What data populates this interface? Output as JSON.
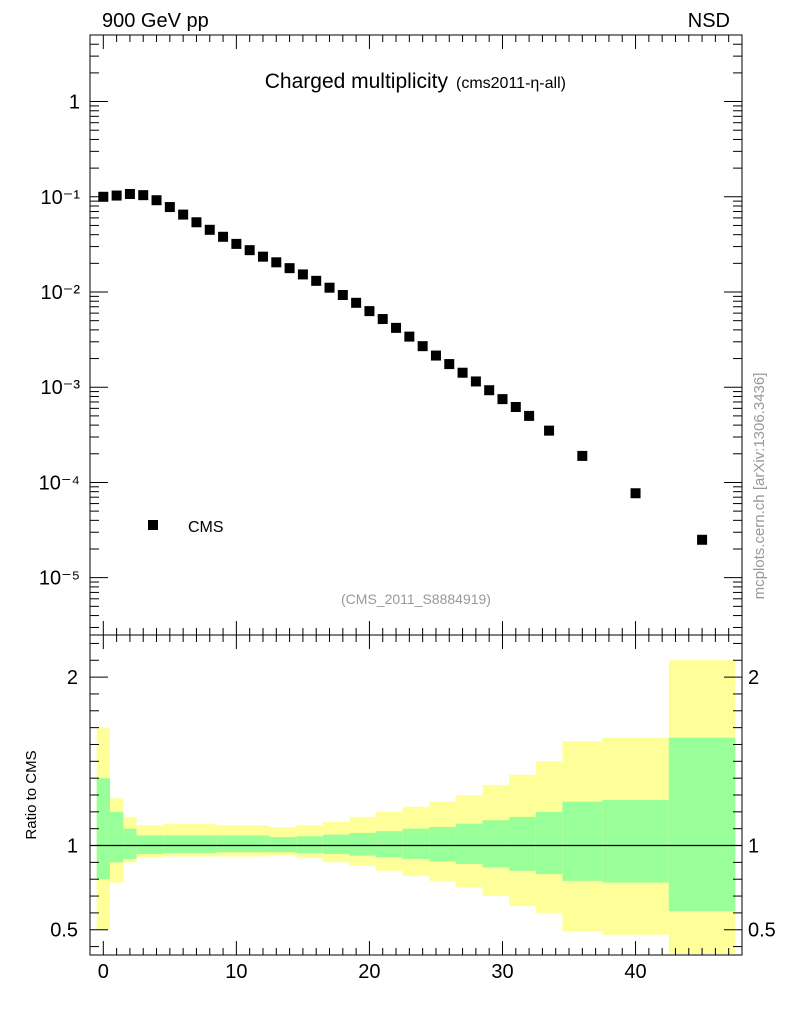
{
  "header": {
    "left": "900 GeV pp",
    "right": "NSD"
  },
  "chart_data": [
    {
      "type": "scatter",
      "title": "Charged multiplicity",
      "subtitle": "(cms2011-η-all)",
      "analysis_label": "(CMS_2011_S8884919)",
      "yscale": "log",
      "ylim": [
        2.5e-06,
        5
      ],
      "xlim": [
        -1,
        48
      ],
      "ytick_labels": [
        "1",
        "10⁻¹",
        "10⁻²",
        "10⁻³",
        "10⁻⁴",
        "10⁻⁵"
      ],
      "legend": {
        "position": "bottom-left",
        "entries": [
          "CMS"
        ]
      },
      "series": [
        {
          "name": "CMS",
          "x": [
            0,
            1,
            2,
            3,
            4,
            5,
            6,
            7,
            8,
            9,
            10,
            11,
            12,
            13,
            14,
            15,
            16,
            17,
            18,
            19,
            20,
            21,
            22,
            23,
            24,
            25,
            26,
            27,
            28,
            29,
            30,
            31,
            32,
            33.5,
            36,
            40,
            45
          ],
          "y": [
            0.1,
            0.103,
            0.107,
            0.104,
            0.092,
            0.078,
            0.065,
            0.054,
            0.045,
            0.038,
            0.032,
            0.0275,
            0.0235,
            0.0205,
            0.0178,
            0.0153,
            0.0131,
            0.0111,
            0.0093,
            0.0077,
            0.0063,
            0.0052,
            0.0042,
            0.0034,
            0.0027,
            0.00215,
            0.00175,
            0.00142,
            0.00115,
            0.00093,
            0.00075,
            0.00062,
            0.0005,
            0.00035,
            0.00019,
            7.7e-05,
            2.5e-05
          ]
        }
      ]
    },
    {
      "type": "area",
      "ylabel": "Ratio to CMS",
      "ylim": [
        0.35,
        2.25
      ],
      "xlim": [
        -1,
        48
      ],
      "yticks": [
        0.5,
        1,
        2
      ],
      "ytick_labels": [
        "0.5",
        "1",
        "2"
      ],
      "xticks": [
        0,
        10,
        20,
        30,
        40
      ],
      "xtick_labels": [
        "0",
        "10",
        "20",
        "30",
        "40"
      ],
      "reference_line": 1,
      "bins": [
        {
          "x0": -0.5,
          "x1": 0.5,
          "g_lo": 0.8,
          "g_hi": 1.4,
          "y_lo": 0.5,
          "y_hi": 1.7
        },
        {
          "x0": 0.5,
          "x1": 1.5,
          "g_lo": 0.9,
          "g_hi": 1.2,
          "y_lo": 0.78,
          "y_hi": 1.28
        },
        {
          "x0": 1.5,
          "x1": 2.5,
          "g_lo": 0.92,
          "g_hi": 1.1,
          "y_lo": 0.9,
          "y_hi": 1.17
        },
        {
          "x0": 2.5,
          "x1": 4.5,
          "g_lo": 0.95,
          "g_hi": 1.06,
          "y_lo": 0.93,
          "y_hi": 1.12
        },
        {
          "x0": 4.5,
          "x1": 8.5,
          "g_lo": 0.955,
          "g_hi": 1.06,
          "y_lo": 0.935,
          "y_hi": 1.13
        },
        {
          "x0": 8.5,
          "x1": 12.5,
          "g_lo": 0.96,
          "g_hi": 1.06,
          "y_lo": 0.935,
          "y_hi": 1.12
        },
        {
          "x0": 12.5,
          "x1": 14.5,
          "g_lo": 0.96,
          "g_hi": 1.05,
          "y_lo": 0.94,
          "y_hi": 1.11
        },
        {
          "x0": 14.5,
          "x1": 16.5,
          "g_lo": 0.955,
          "g_hi": 1.055,
          "y_lo": 0.925,
          "y_hi": 1.12
        },
        {
          "x0": 16.5,
          "x1": 18.5,
          "g_lo": 0.95,
          "g_hi": 1.065,
          "y_lo": 0.9,
          "y_hi": 1.14
        },
        {
          "x0": 18.5,
          "x1": 20.5,
          "g_lo": 0.94,
          "g_hi": 1.075,
          "y_lo": 0.88,
          "y_hi": 1.17
        },
        {
          "x0": 20.5,
          "x1": 22.5,
          "g_lo": 0.93,
          "g_hi": 1.085,
          "y_lo": 0.85,
          "y_hi": 1.2
        },
        {
          "x0": 22.5,
          "x1": 24.5,
          "g_lo": 0.92,
          "g_hi": 1.1,
          "y_lo": 0.82,
          "y_hi": 1.23
        },
        {
          "x0": 24.5,
          "x1": 26.5,
          "g_lo": 0.905,
          "g_hi": 1.11,
          "y_lo": 0.79,
          "y_hi": 1.26
        },
        {
          "x0": 26.5,
          "x1": 28.5,
          "g_lo": 0.89,
          "g_hi": 1.13,
          "y_lo": 0.75,
          "y_hi": 1.3
        },
        {
          "x0": 28.5,
          "x1": 30.5,
          "g_lo": 0.87,
          "g_hi": 1.15,
          "y_lo": 0.7,
          "y_hi": 1.36
        },
        {
          "x0": 30.5,
          "x1": 32.5,
          "g_lo": 0.85,
          "g_hi": 1.17,
          "y_lo": 0.64,
          "y_hi": 1.42
        },
        {
          "x0": 32.5,
          "x1": 34.5,
          "g_lo": 0.83,
          "g_hi": 1.2,
          "y_lo": 0.6,
          "y_hi": 1.5
        },
        {
          "x0": 34.5,
          "x1": 37.5,
          "g_lo": 0.79,
          "g_hi": 1.26,
          "y_lo": 0.49,
          "y_hi": 1.62
        },
        {
          "x0": 37.5,
          "x1": 42.5,
          "g_lo": 0.78,
          "g_hi": 1.27,
          "y_lo": 0.47,
          "y_hi": 1.64
        },
        {
          "x0": 42.5,
          "x1": 47.5,
          "g_lo": 0.61,
          "g_hi": 1.64,
          "y_lo": 0.3,
          "y_hi": 2.1
        }
      ]
    }
  ],
  "side_label": "mcplots.cern.ch [arXiv:1306.3436]",
  "colors": {
    "inner_band": "#99ff99",
    "outer_band": "#ffff99",
    "marker": "#000000",
    "grey_text": "#999999"
  }
}
